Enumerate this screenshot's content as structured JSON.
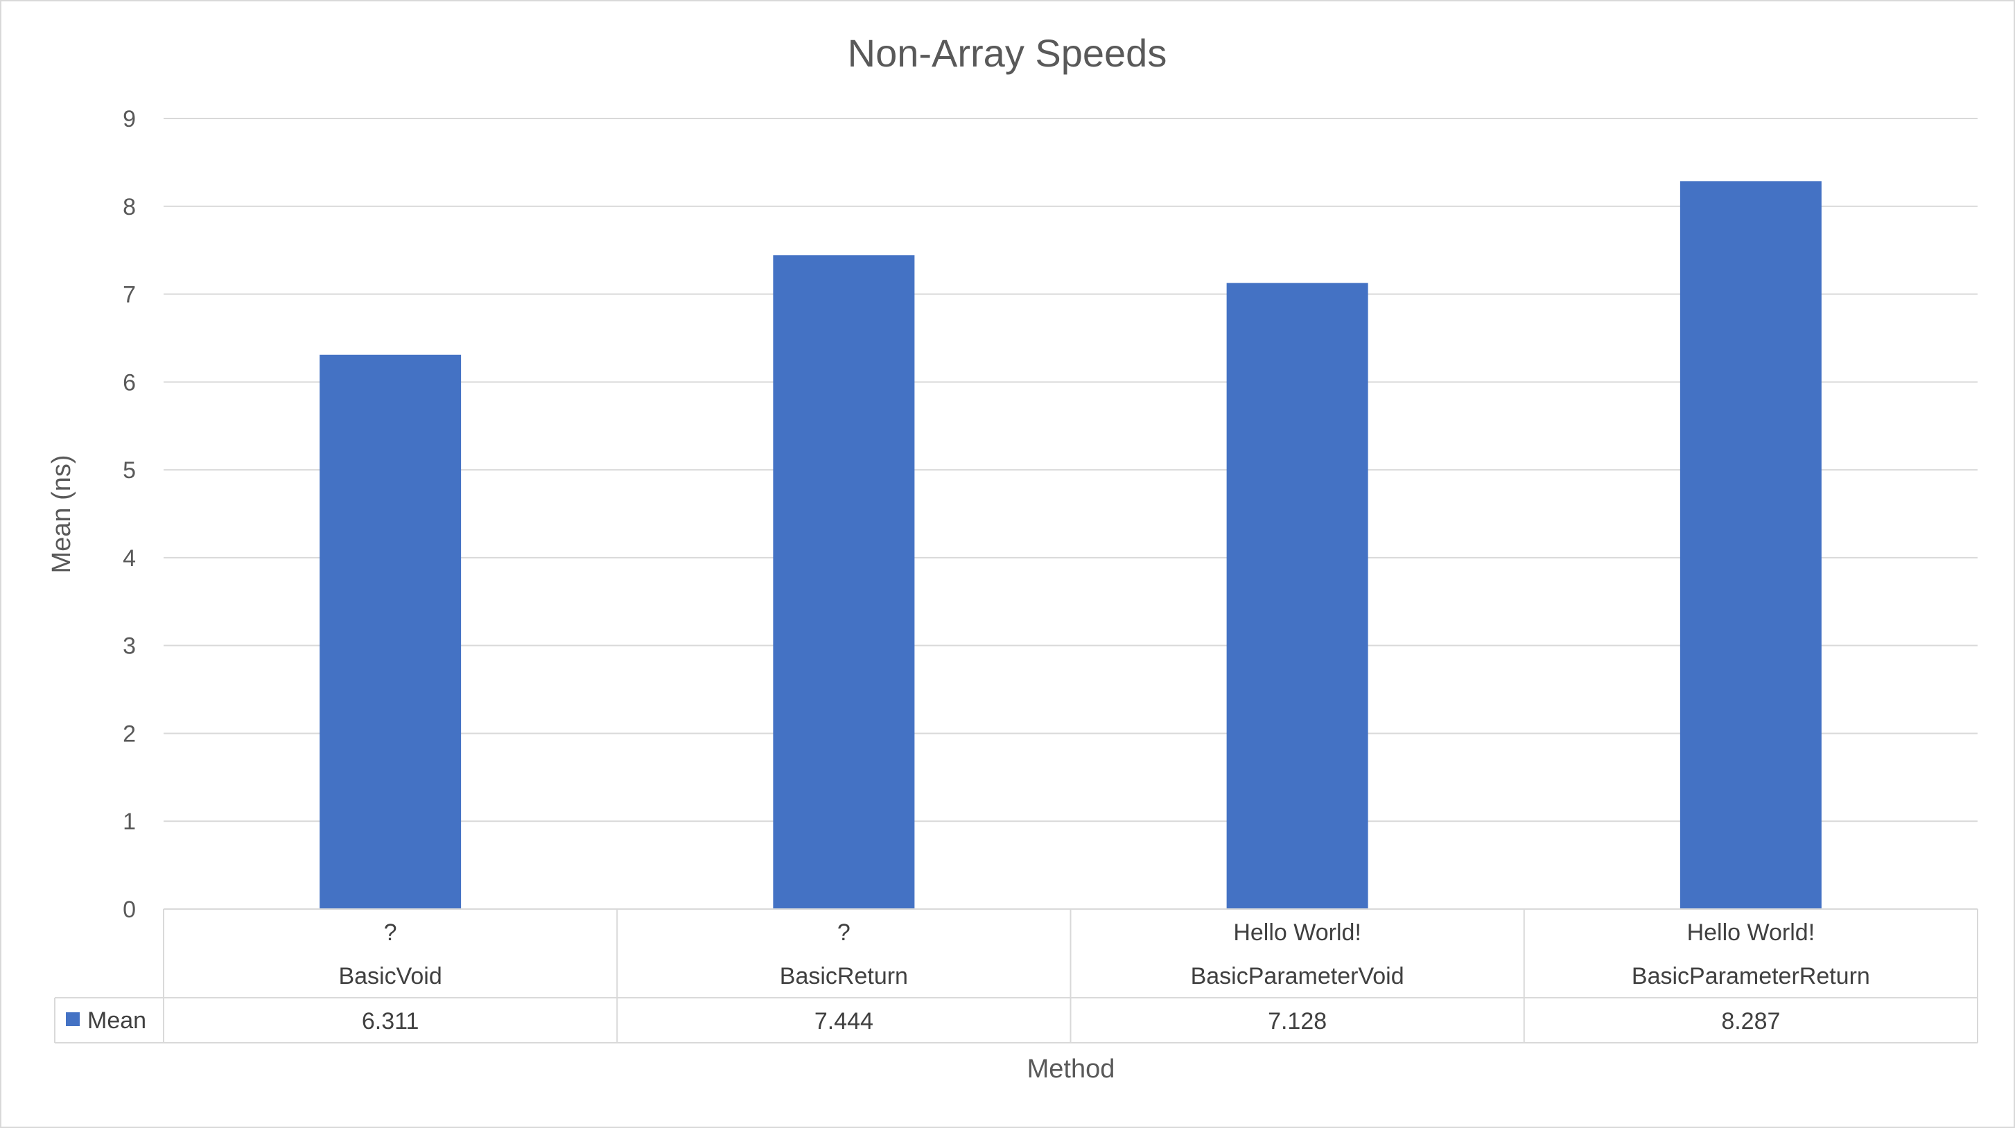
{
  "chart_data": {
    "type": "bar",
    "title": "Non-Array Speeds",
    "xlabel": "Method",
    "ylabel": "Mean (ns)",
    "ylim": [
      0,
      9
    ],
    "yticks": [
      "0",
      "1",
      "2",
      "3",
      "4",
      "5",
      "6",
      "7",
      "8",
      "9"
    ],
    "grid": true,
    "legend": "data-table",
    "categories": [
      {
        "line1": "?",
        "line2": "BasicVoid"
      },
      {
        "line1": "?",
        "line2": "BasicReturn"
      },
      {
        "line1": "Hello World!",
        "line2": "BasicParameterVoid"
      },
      {
        "line1": "Hello World!",
        "line2": "BasicParameterReturn"
      }
    ],
    "series": [
      {
        "name": "Mean",
        "color": "#4472c4",
        "values": [
          6.311,
          7.444,
          7.128,
          8.287
        ],
        "labels": [
          "6.311",
          "7.444",
          "7.128",
          "8.287"
        ]
      }
    ]
  }
}
